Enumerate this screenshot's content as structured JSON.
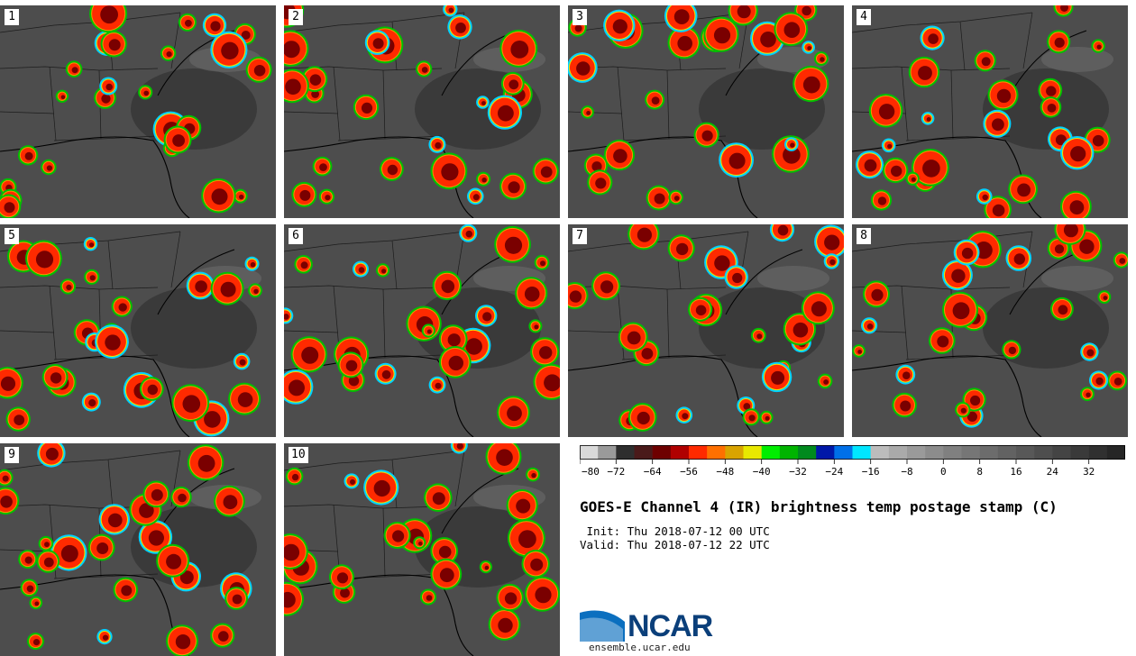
{
  "panels": [
    {
      "label": "1"
    },
    {
      "label": "2"
    },
    {
      "label": "3"
    },
    {
      "label": "4"
    },
    {
      "label": "5"
    },
    {
      "label": "6"
    },
    {
      "label": "7"
    },
    {
      "label": "8"
    },
    {
      "label": "9"
    },
    {
      "label": "10"
    }
  ],
  "colorbar": {
    "ticks": [
      "−80",
      "−72",
      "−64",
      "−56",
      "−48",
      "−40",
      "−32",
      "−24",
      "−16",
      "−8",
      "0",
      "8",
      "16",
      "24",
      "32"
    ],
    "colors": [
      "#d9d9d9",
      "#9a9a9a",
      "#2e2e2e",
      "#4a1a1a",
      "#6e0000",
      "#b00000",
      "#ff2a00",
      "#ff7000",
      "#d9a400",
      "#e8e800",
      "#00ee00",
      "#00b400",
      "#008a1e",
      "#0018a8",
      "#0070e8",
      "#00e6ff",
      "#bcbcbc",
      "#aaaaaa",
      "#9a9a9a",
      "#8c8c8c",
      "#808080",
      "#767676",
      "#6c6c6c",
      "#626262",
      "#585858",
      "#4e4e4e",
      "#444444",
      "#3a3a3a",
      "#303030",
      "#262626"
    ]
  },
  "title": "GOES-E Channel 4 (IR) brightness temp postage stamp (C)",
  "init_text": " Init: Thu 2018-07-12 00 UTC",
  "valid_text": "Valid: Thu 2018-07-12 22 UTC",
  "logo": {
    "text": "NCAR",
    "url": "ensemble.ucar.edu"
  }
}
